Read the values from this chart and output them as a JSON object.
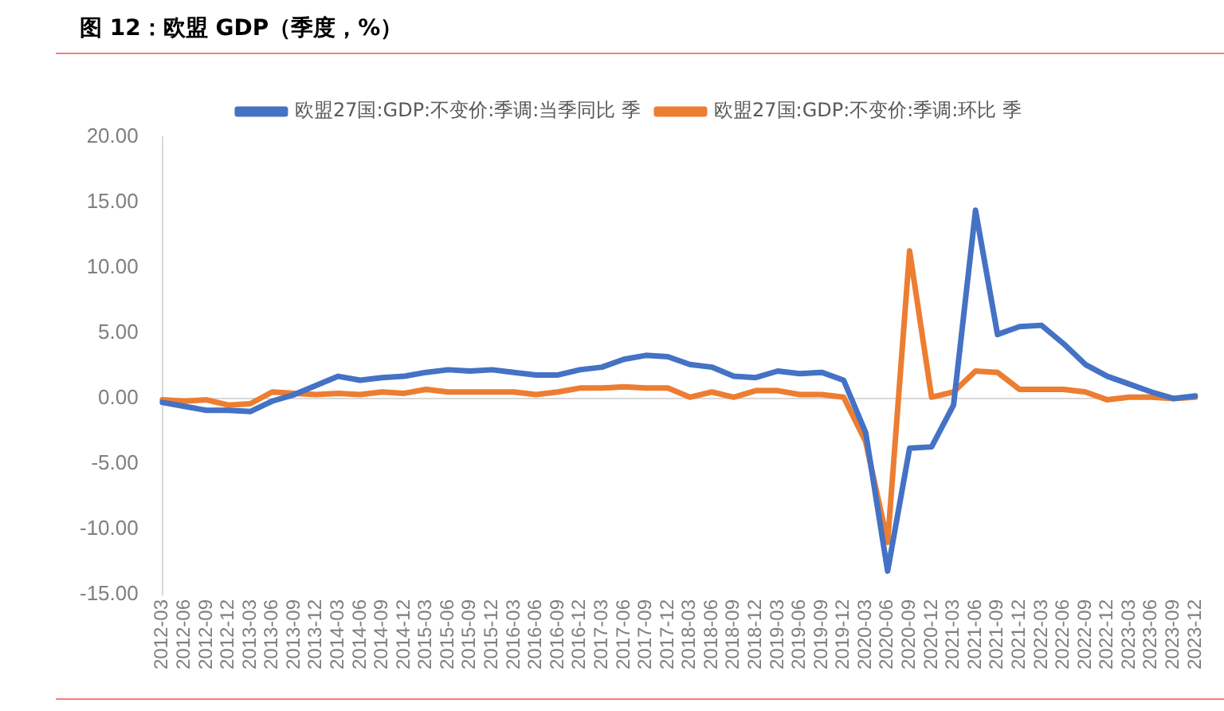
{
  "chart_data": {
    "type": "line",
    "title": "图 12：欧盟 GDP（季度，%）",
    "categories": [
      "2012-03",
      "2012-06",
      "2012-09",
      "2012-12",
      "2013-03",
      "2013-06",
      "2013-09",
      "2013-12",
      "2014-03",
      "2014-06",
      "2014-09",
      "2014-12",
      "2015-03",
      "2015-06",
      "2015-09",
      "2015-12",
      "2016-03",
      "2016-06",
      "2016-09",
      "2016-12",
      "2017-03",
      "2017-06",
      "2017-09",
      "2017-12",
      "2018-03",
      "2018-06",
      "2018-09",
      "2018-12",
      "2019-03",
      "2019-06",
      "2019-09",
      "2019-12",
      "2020-03",
      "2020-06",
      "2020-09",
      "2020-12",
      "2021-03",
      "2021-06",
      "2021-09",
      "2021-12",
      "2022-03",
      "2022-06",
      "2022-09",
      "2022-12",
      "2023-03",
      "2023-06",
      "2023-09",
      "2023-12"
    ],
    "series": [
      {
        "name": "欧盟27国:GDP:不变价:季调:当季同比 季",
        "color": "#4472c4",
        "values": [
          -0.3,
          -0.6,
          -0.9,
          -0.9,
          -1.0,
          -0.2,
          0.3,
          1.0,
          1.7,
          1.4,
          1.6,
          1.7,
          2.0,
          2.2,
          2.1,
          2.2,
          2.0,
          1.8,
          1.8,
          2.2,
          2.4,
          3.0,
          3.3,
          3.2,
          2.6,
          2.4,
          1.7,
          1.6,
          2.1,
          1.9,
          2.0,
          1.4,
          -2.6,
          -13.2,
          -3.8,
          -3.7,
          -0.5,
          14.4,
          4.9,
          5.5,
          5.6,
          4.2,
          2.6,
          1.7,
          1.1,
          0.5,
          0.0,
          0.2
        ]
      },
      {
        "name": "欧盟27国:GDP:不变价:季调:环比 季",
        "color": "#ed7d31",
        "values": [
          -0.1,
          -0.2,
          -0.1,
          -0.5,
          -0.4,
          0.5,
          0.4,
          0.3,
          0.4,
          0.3,
          0.5,
          0.4,
          0.7,
          0.5,
          0.5,
          0.5,
          0.5,
          0.3,
          0.5,
          0.8,
          0.8,
          0.9,
          0.8,
          0.8,
          0.1,
          0.5,
          0.1,
          0.6,
          0.6,
          0.3,
          0.3,
          0.1,
          -3.3,
          -11.0,
          11.3,
          0.1,
          0.5,
          2.1,
          2.0,
          0.7,
          0.7,
          0.7,
          0.5,
          -0.1,
          0.1,
          0.1,
          0.0,
          0.1
        ]
      }
    ],
    "ylim": [
      -15,
      20
    ],
    "yticks": [
      {
        "value": -15,
        "label": "-15.00"
      },
      {
        "value": -10,
        "label": "-10.00"
      },
      {
        "value": -5,
        "label": "-5.00"
      },
      {
        "value": 0,
        "label": "0.00"
      },
      {
        "value": 5,
        "label": "5.00"
      },
      {
        "value": 10,
        "label": "10.00"
      },
      {
        "value": 15,
        "label": "15.00"
      },
      {
        "value": 20,
        "label": "20.00"
      }
    ],
    "ref_lines": [
      {
        "axis": "y",
        "value": 0,
        "color": "#d9d9d9"
      }
    ],
    "grid": false,
    "legend": "top",
    "marker": "none",
    "line_style": "solid"
  }
}
